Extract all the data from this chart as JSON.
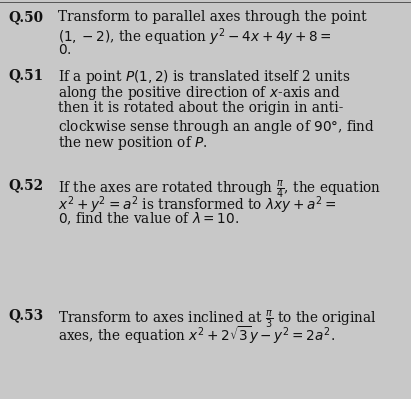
{
  "background_color": "#c8c8c8",
  "text_color": "#111111",
  "figsize": [
    4.11,
    3.99
  ],
  "dpi": 100,
  "fontsize": 9.8,
  "label_fontsize": 9.8,
  "questions": [
    {
      "label": "Q.50",
      "lines": [
        "Transform to parallel axes through the point",
        "$(1,-2)$, the equation $y^2-4x+4y+8=$",
        "$0.$"
      ]
    },
    {
      "label": "Q.51",
      "lines": [
        "If a point $P(1,2)$ is translated itself 2 units",
        "along the positive direction of $x$-axis and",
        "then it is rotated about the origin in anti-",
        "clockwise sense through an angle of $90°$, find",
        "the new position of $P$."
      ]
    },
    {
      "label": "Q.52",
      "lines": [
        "If the axes are rotated through $\\frac{\\pi}{4}$, the equation",
        "$x^2+y^2=a^2$ is transformed to $\\lambda xy+a^2=$",
        "$0$, find the value of $\\lambda=10.$"
      ]
    },
    {
      "label": "Q.53",
      "lines": [
        "Transform to axes inclined at $\\frac{\\pi}{3}$ to the original",
        "axes, the equation $x^2+2\\sqrt{3}y-y^2=2a^2.$"
      ]
    }
  ]
}
